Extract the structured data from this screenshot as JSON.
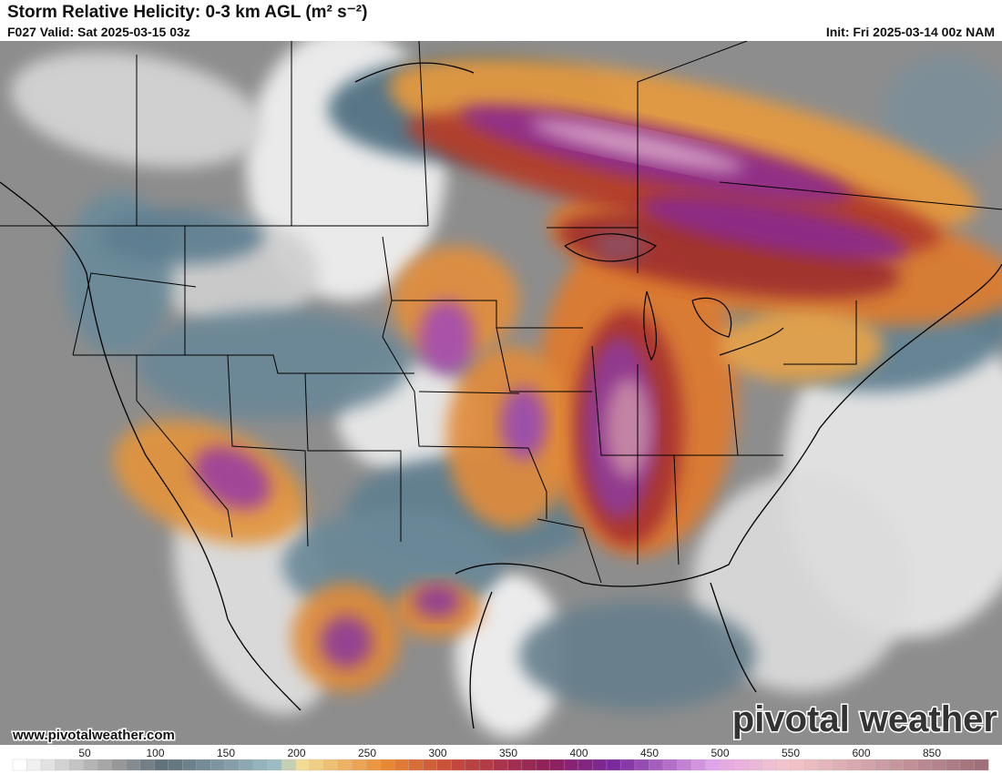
{
  "header": {
    "title": "Storm Relative Helicity: 0-3 km AGL (m² s⁻²)",
    "valid": "F027 Valid: Sat 2025-03-15 03z",
    "init": "Init: Fri 2025-03-14 00z NAM"
  },
  "footer": {
    "url": "www.pivotalweather.com",
    "brand": "pivotal weather"
  },
  "colorbar": {
    "labels": [
      50,
      100,
      150,
      200,
      250,
      300,
      350,
      400,
      450,
      500,
      550,
      600,
      850
    ]
  }
}
